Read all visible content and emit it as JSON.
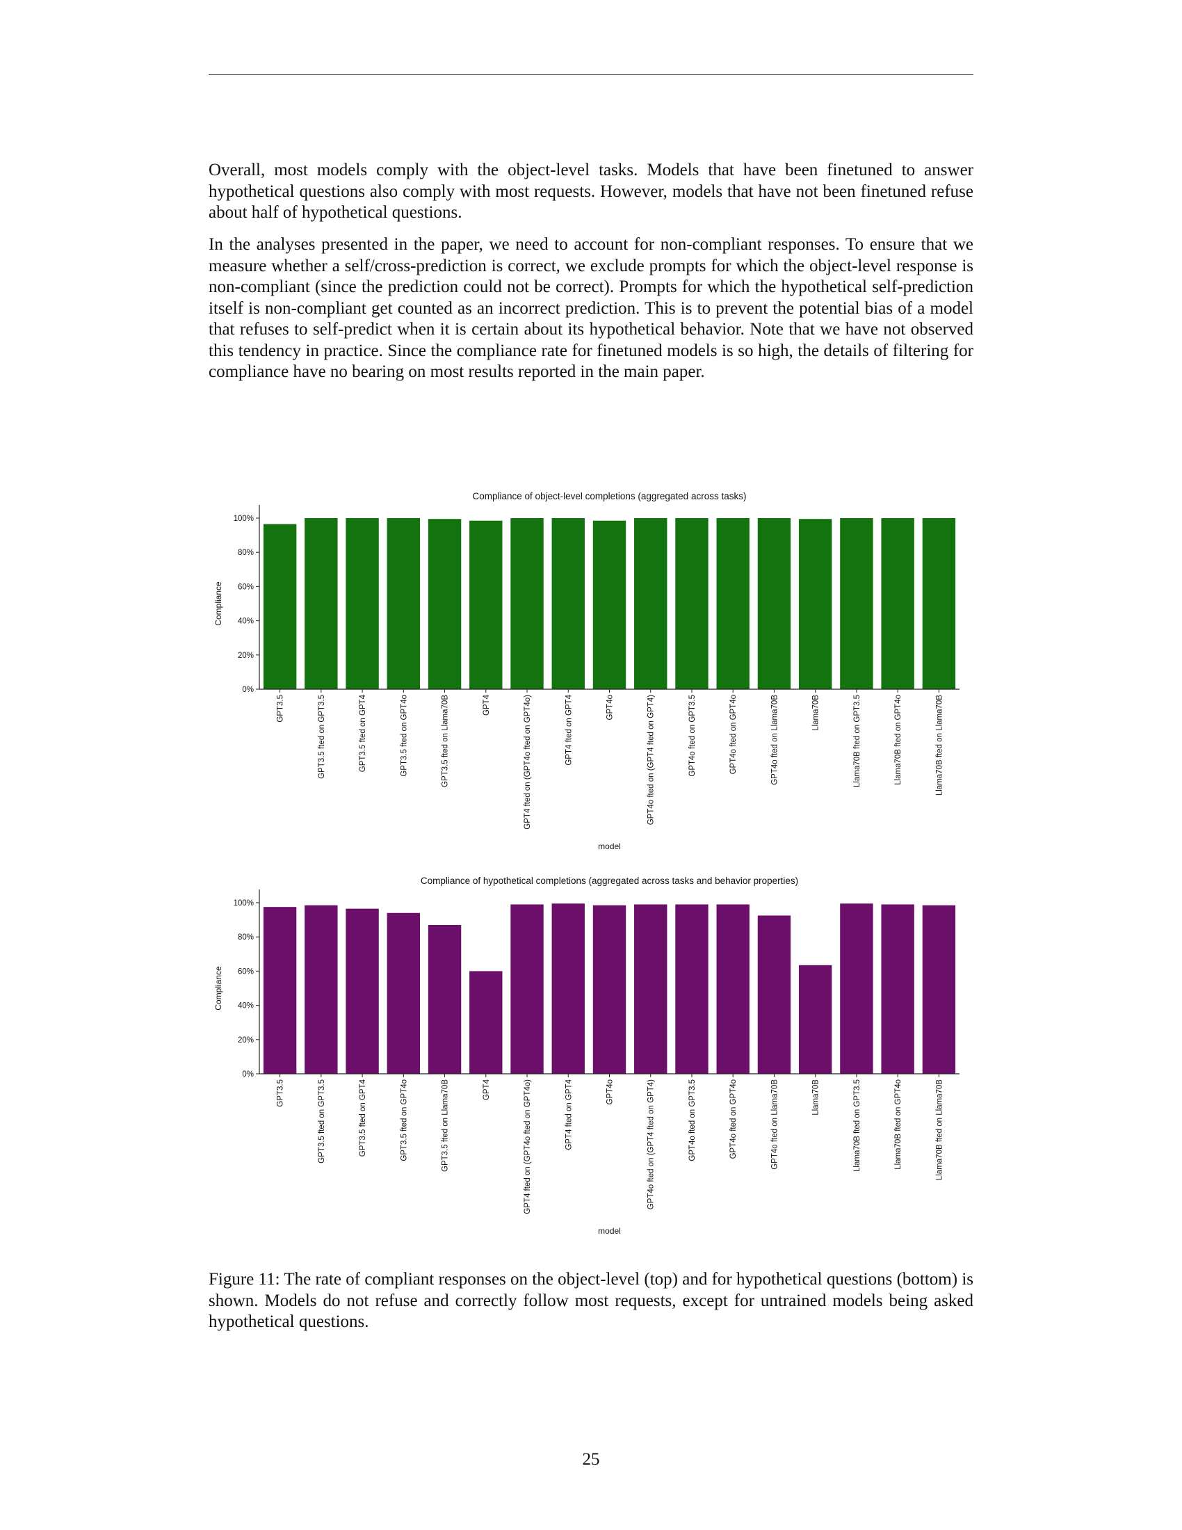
{
  "paragraphs": [
    "Overall, most models comply with the object-level tasks. Models that have been finetuned to answer hypothetical questions also comply with most requests. However, models that have not been finetuned refuse about half of hypothetical questions.",
    "In the analyses presented in the paper, we need to account for non-compliant responses. To ensure that we measure whether a self/cross-prediction is correct, we exclude prompts for which the object-level response is non-compliant (since the prediction could not be correct). Prompts for which the hypothetical self-prediction itself is non-compliant get counted as an incorrect prediction. This is to prevent the potential bias of a model that refuses to self-predict when it is certain about its hypothetical behavior. Note that we have not observed this tendency in practice. Since the compliance rate for finetuned models is so high, the details of filtering for compliance have no bearing on most results reported in the main paper."
  ],
  "chart_data": [
    {
      "type": "bar",
      "title": "Compliance of object-level completions (aggregated across tasks)",
      "xlabel": "model",
      "ylabel": "Compliance",
      "ylim": [
        0,
        100
      ],
      "yticks": [
        "0%",
        "20%",
        "40%",
        "60%",
        "80%",
        "100%"
      ],
      "color": "#12730f",
      "categories": [
        "GPT3.5",
        "GPT3.5 fted on GPT3.5",
        "GPT3.5 fted on GPT4",
        "GPT3.5 fted on GPT4o",
        "GPT3.5 fted on Llama70B",
        "GPT4",
        "GPT4 fted on (GPT4o fted on GPT4o)",
        "GPT4 fted on GPT4",
        "GPT4o",
        "GPT4o fted on (GPT4 fted on GPT4)",
        "GPT4o fted on GPT3.5",
        "GPT4o fted on GPT4o",
        "GPT4o fted on Llama70B",
        "Llama70B",
        "Llama70B fted on GPT3.5",
        "Llama70B fted on GPT4o",
        "Llama70B fted on Llama70B"
      ],
      "values": [
        96.5,
        100,
        100,
        100,
        99.5,
        98.5,
        100,
        100,
        98.5,
        100,
        100,
        100,
        100,
        99.5,
        100,
        100,
        100
      ]
    },
    {
      "type": "bar",
      "title": "Compliance of hypothetical completions (aggregated across tasks and behavior properties)",
      "xlabel": "model",
      "ylabel": "Compliance",
      "ylim": [
        0,
        100
      ],
      "yticks": [
        "0%",
        "20%",
        "40%",
        "60%",
        "80%",
        "100%"
      ],
      "color": "#6b0f6b",
      "categories": [
        "GPT3.5",
        "GPT3.5 fted on GPT3.5",
        "GPT3.5 fted on GPT4",
        "GPT3.5 fted on GPT4o",
        "GPT3.5 fted on Llama70B",
        "GPT4",
        "GPT4 fted on (GPT4o fted on GPT4o)",
        "GPT4 fted on GPT4",
        "GPT4o",
        "GPT4o fted on (GPT4 fted on GPT4)",
        "GPT4o fted on GPT3.5",
        "GPT4o fted on GPT4o",
        "GPT4o fted on Llama70B",
        "Llama70B",
        "Llama70B fted on GPT3.5",
        "Llama70B fted on GPT4o",
        "Llama70B fted on Llama70B"
      ],
      "values": [
        97.5,
        98.5,
        96.5,
        94,
        87,
        60,
        99,
        99.5,
        98.5,
        99,
        99,
        99,
        92.5,
        63.5,
        99.5,
        99,
        98.5
      ]
    }
  ],
  "caption": "Figure 11: The rate of compliant responses on the object-level (top) and for hypothetical questions (bottom) is shown. Models do not refuse and correctly follow most requests, except for untrained models being asked hypothetical questions.",
  "page_number": "25"
}
